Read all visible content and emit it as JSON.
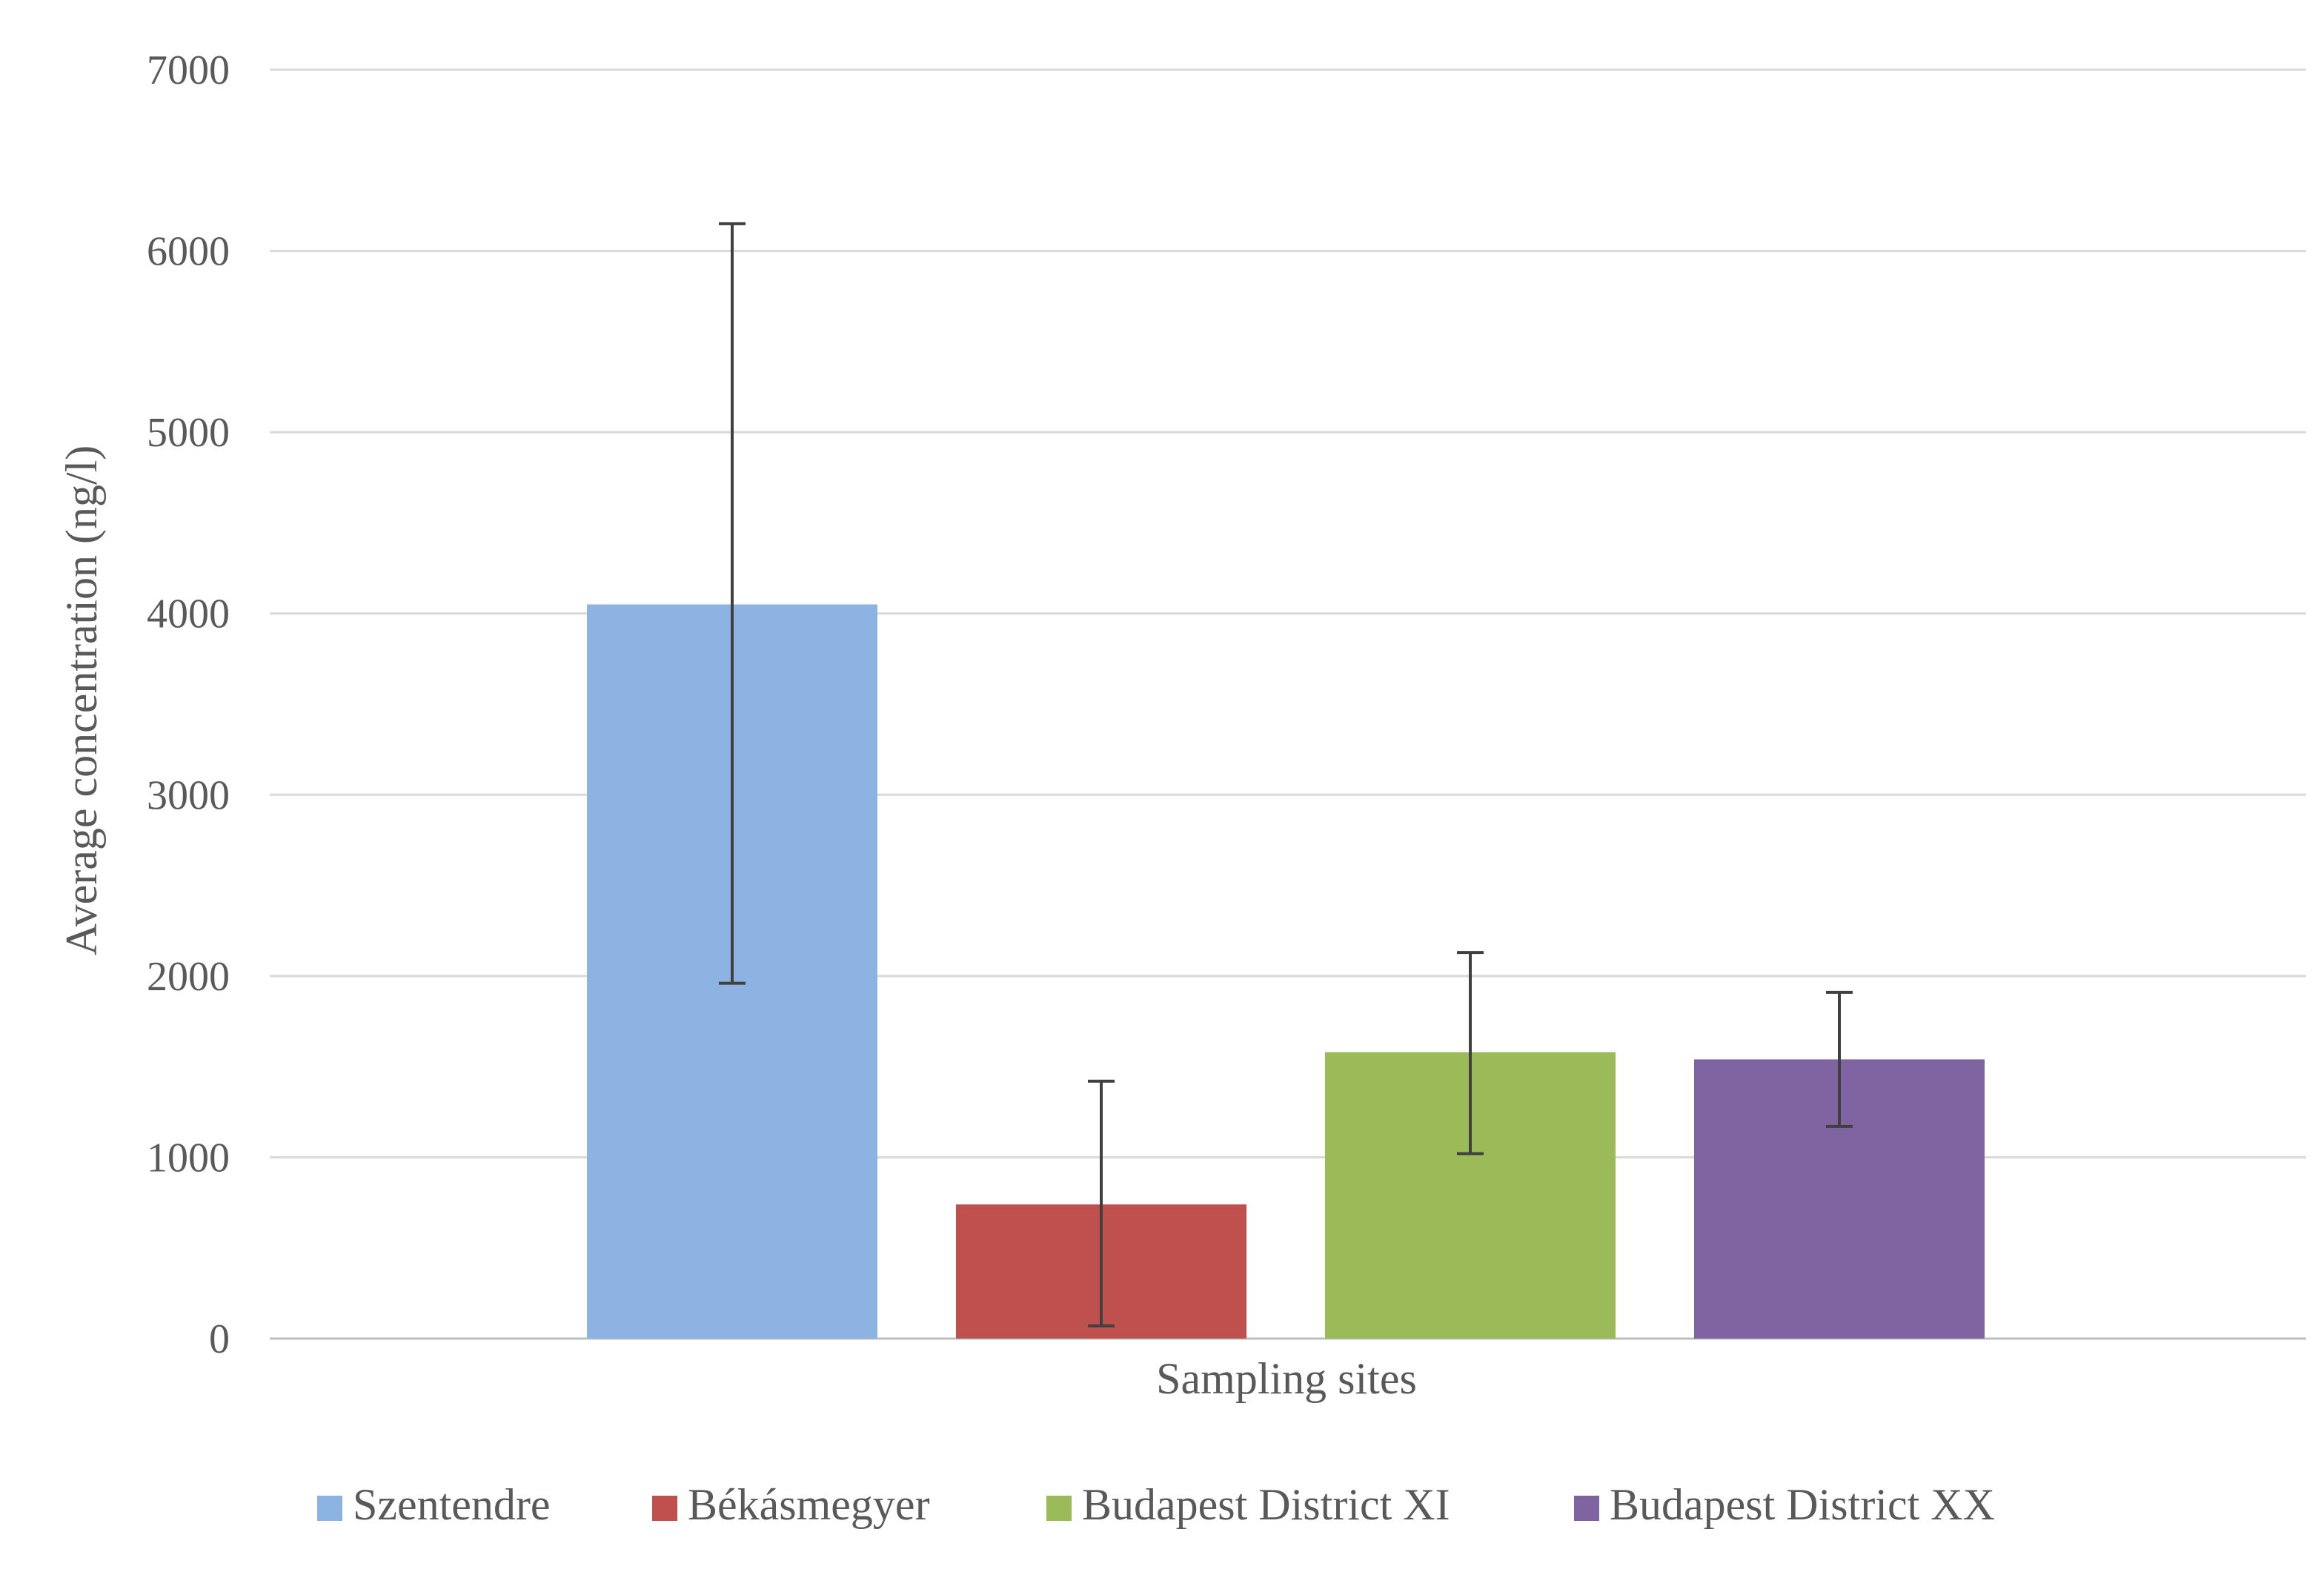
{
  "chart_data": {
    "type": "bar",
    "title": "",
    "xlabel": "Sampling sites",
    "ylabel": "Average concentration (ng/l)",
    "ylim": [
      0,
      7000
    ],
    "yticks": [
      "0",
      "1000",
      "2000",
      "3000",
      "4000",
      "5000",
      "6000",
      "7000"
    ],
    "grid": true,
    "legend_position": "bottom",
    "series": [
      {
        "name": "Szentendre",
        "value": 4050,
        "error_low": 1960,
        "error_high": 6150,
        "color": "#8db3e2"
      },
      {
        "name": "Békásmegyer",
        "value": 740,
        "error_low": 70,
        "error_high": 1420,
        "color": "#c0504d"
      },
      {
        "name": "Budapest District XI",
        "value": 1580,
        "error_low": 1020,
        "error_high": 2130,
        "color": "#9bbb59"
      },
      {
        "name": "Budapest District XX",
        "value": 1540,
        "error_low": 1170,
        "error_high": 1910,
        "color": "#8064a2"
      }
    ]
  }
}
